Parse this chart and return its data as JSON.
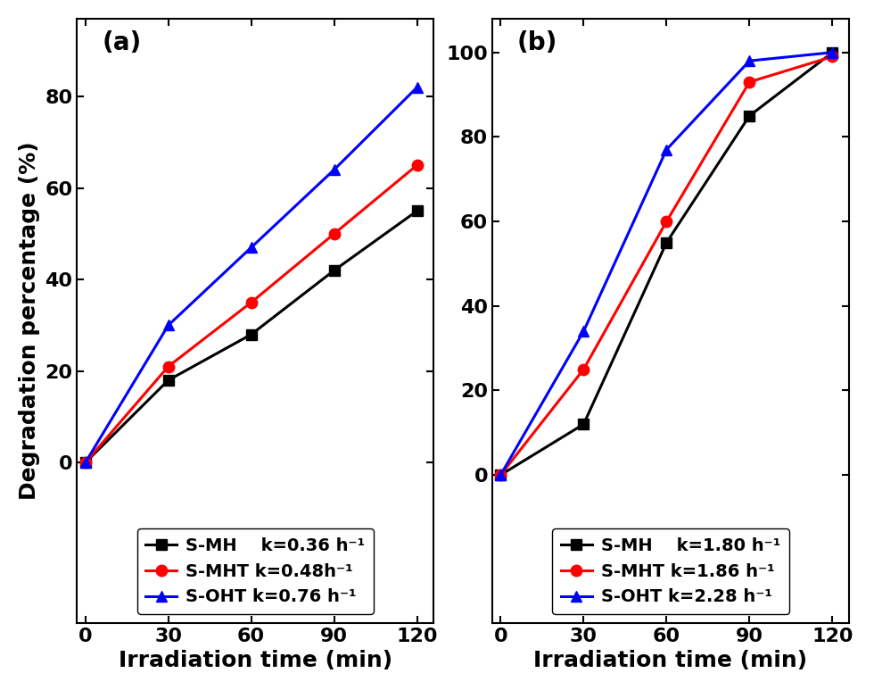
{
  "panel_a": {
    "x": [
      0,
      30,
      60,
      90,
      120
    ],
    "SMH_y": [
      0,
      18,
      28,
      42,
      55
    ],
    "SMHT_y": [
      0,
      21,
      35,
      50,
      65
    ],
    "SOHT_y": [
      0,
      30,
      47,
      64,
      82
    ],
    "legend": [
      "S-MH    k=0.36 h⁻¹",
      "S-MHT k=0.48h⁻¹",
      "S-OHT k=0.76 h⁻¹"
    ],
    "ylabel": "Degradation percentage (%)",
    "ylim": [
      -35,
      97
    ],
    "yticks": [
      0,
      20,
      40,
      60,
      80
    ],
    "label": "(a)"
  },
  "panel_b": {
    "x": [
      0,
      30,
      60,
      90,
      120
    ],
    "SMH_y": [
      0,
      12,
      55,
      85,
      100
    ],
    "SMHT_y": [
      0,
      25,
      60,
      93,
      99
    ],
    "SOHT_y": [
      0,
      34,
      77,
      98,
      100
    ],
    "legend": [
      "S-MH    k=1.80 h⁻¹",
      "S-MHT k=1.86 h⁻¹",
      "S-OHT k=2.28 h⁻¹"
    ],
    "ylim": [
      -35,
      108
    ],
    "yticks": [
      0,
      20,
      40,
      60,
      80,
      100
    ],
    "label": "(b)"
  },
  "xlabel": "Irradiation time (min)",
  "colors": [
    "#000000",
    "#ff0000",
    "#0000ff"
  ],
  "markers": [
    "s",
    "o",
    "^"
  ],
  "markersize": 9,
  "linewidth": 2.2,
  "tick_fontsize": 16,
  "label_fontsize": 18,
  "legend_fontsize": 14,
  "background_color": "#ffffff"
}
